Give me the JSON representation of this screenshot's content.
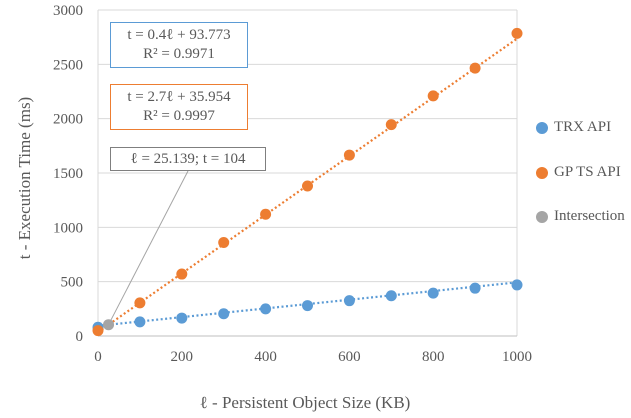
{
  "chart_data": {
    "type": "scatter",
    "xlabel": "ℓ - Persistent Object Size (KB)",
    "ylabel": "t - Execution Time (ms)",
    "xlim": [
      0,
      1000
    ],
    "ylim": [
      0,
      3000
    ],
    "x_ticks": [
      "0",
      "200",
      "400",
      "600",
      "800",
      "1000"
    ],
    "y_ticks": [
      "0",
      "500",
      "1000",
      "1500",
      "2000",
      "2500",
      "3000"
    ],
    "grid": "horizontal",
    "legend_position": "right",
    "series": [
      {
        "name": "TRX API",
        "color": "#5b9bd5",
        "x": [
          0,
          100,
          200,
          300,
          400,
          500,
          600,
          700,
          800,
          900,
          1000
        ],
        "y": [
          80,
          130,
          165,
          205,
          250,
          280,
          325,
          370,
          395,
          440,
          470
        ],
        "trendline": {
          "slope": 0.4,
          "intercept": 93.773,
          "style": "dotted"
        }
      },
      {
        "name": "GP TS API",
        "color": "#ed7d31",
        "x": [
          0,
          100,
          200,
          300,
          400,
          500,
          600,
          700,
          800,
          900,
          1000
        ],
        "y": [
          50,
          305,
          570,
          860,
          1120,
          1380,
          1665,
          1945,
          2210,
          2465,
          2785
        ],
        "trendline": {
          "slope": 2.7,
          "intercept": 35.954,
          "style": "dotted"
        }
      },
      {
        "name": "Intersection",
        "color": "#a5a5a5",
        "x": [
          25.139
        ],
        "y": [
          104
        ]
      }
    ],
    "annotations": {
      "trx_equation": "t = 0.4ℓ + 93.773",
      "trx_r2": "R² = 0.9971",
      "gp_equation": "t = 2.7ℓ + 35.954",
      "gp_r2": "R² = 0.9997",
      "intersection_label": "ℓ = 25.139; t = 104"
    }
  }
}
